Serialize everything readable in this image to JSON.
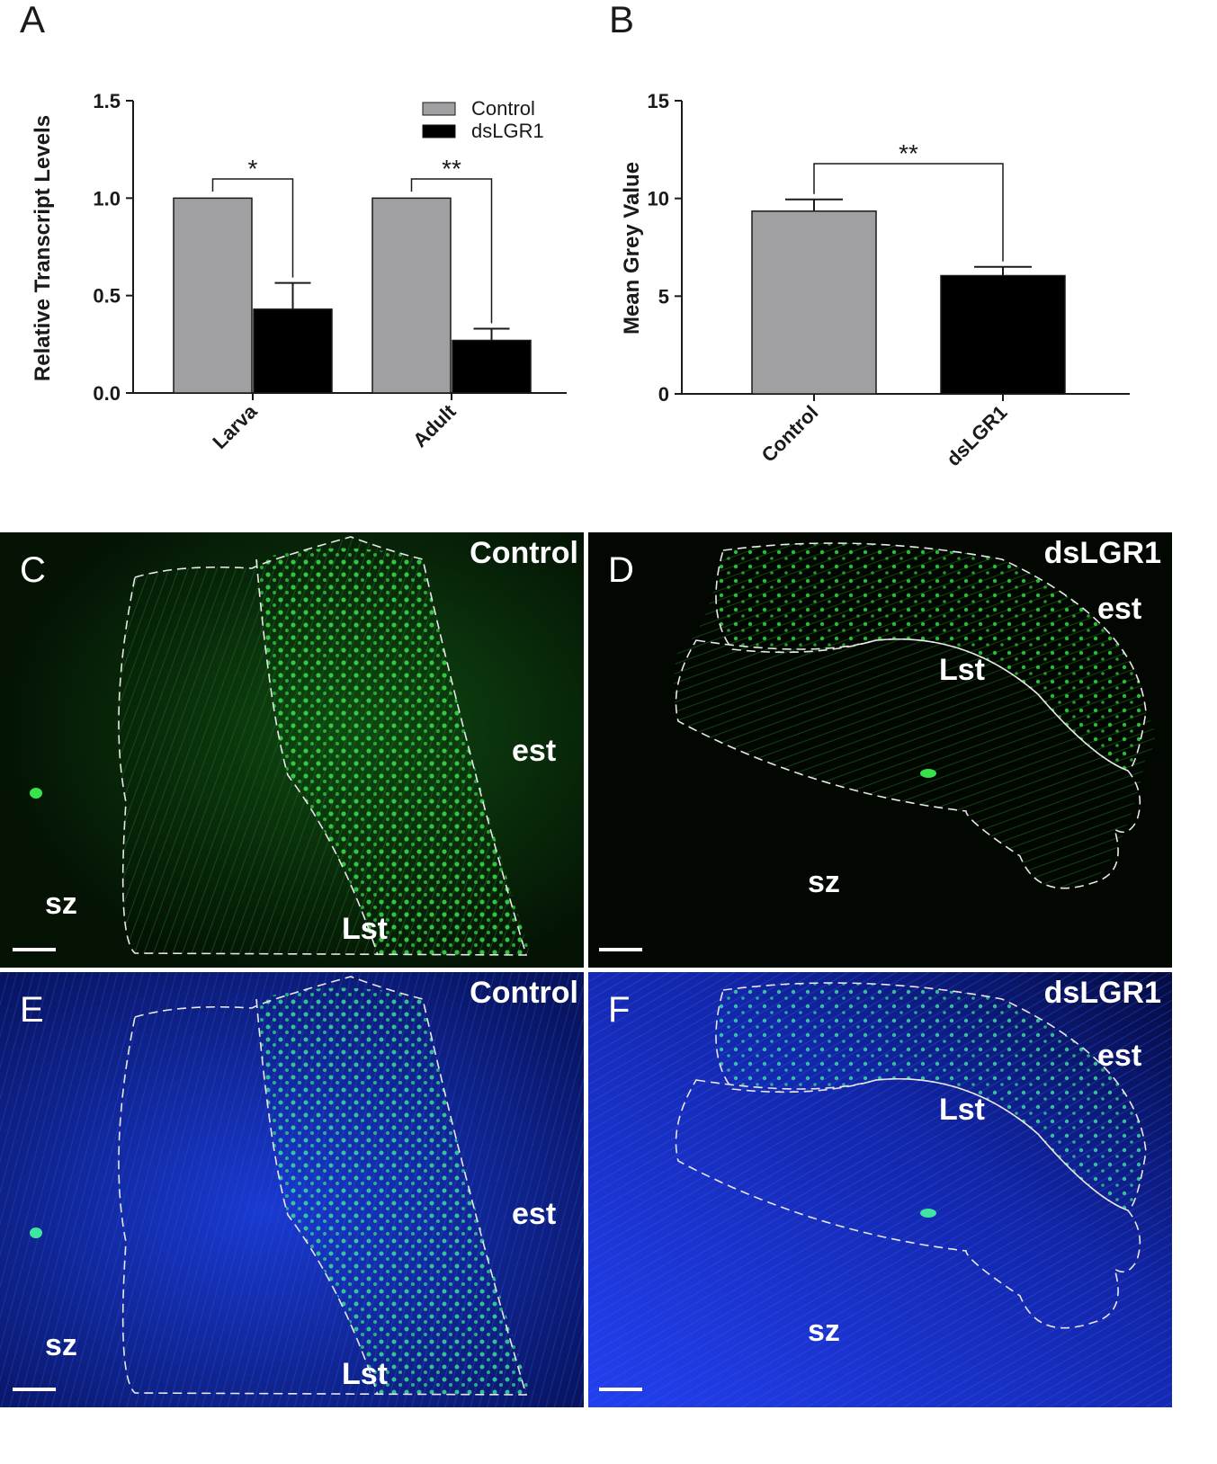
{
  "chart_data": [
    {
      "panel": "A",
      "type": "bar",
      "categories": [
        "Larva",
        "Adult"
      ],
      "series": [
        {
          "name": "Control",
          "values": [
            1.0,
            1.0
          ],
          "errors": [
            0,
            0
          ],
          "color": "#a0a0a3"
        },
        {
          "name": "dsLGR1",
          "values": [
            0.43,
            0.27
          ],
          "errors": [
            0.135,
            0.06
          ],
          "color": "#000000"
        }
      ],
      "ylabel": "Relative Transcript Levels",
      "xlabel": "",
      "ylim": [
        0,
        1.5
      ],
      "yticks": [
        0.0,
        0.5,
        1.0,
        1.5
      ],
      "ytick_labels": [
        "0.0",
        "0.5",
        "1.0",
        "1.5"
      ],
      "significance": [
        "*",
        "**"
      ],
      "legend": "top-right",
      "grid": false
    },
    {
      "panel": "B",
      "type": "bar",
      "categories": [
        "Control",
        "dsLGR1"
      ],
      "values": [
        9.35,
        6.05
      ],
      "errors": [
        0.6,
        0.45
      ],
      "colors": [
        "#a0a0a3",
        "#000000"
      ],
      "ylabel": "Mean Grey Value",
      "xlabel": "",
      "ylim": [
        0,
        15
      ],
      "yticks": [
        0,
        5,
        10,
        15
      ],
      "ytick_labels": [
        "0",
        "5",
        "10",
        "15"
      ],
      "significance": [
        "**"
      ],
      "grid": false
    }
  ],
  "panels": {
    "A": "A",
    "B": "B"
  },
  "micrographs": [
    {
      "letter": "C",
      "condition": "Control",
      "labels": {
        "est": "est",
        "lst": "Lst",
        "sz": "sz"
      },
      "stain": "green"
    },
    {
      "letter": "D",
      "condition": "dsLGR1",
      "labels": {
        "est": "est",
        "lst": "Lst",
        "sz": "sz"
      },
      "stain": "green"
    },
    {
      "letter": "E",
      "condition": "Control",
      "labels": {
        "est": "est",
        "lst": "Lst",
        "sz": "sz"
      },
      "stain": "blue-green"
    },
    {
      "letter": "F",
      "condition": "dsLGR1",
      "labels": {
        "est": "est",
        "lst": "Lst",
        "sz": "sz"
      },
      "stain": "blue-green"
    }
  ]
}
